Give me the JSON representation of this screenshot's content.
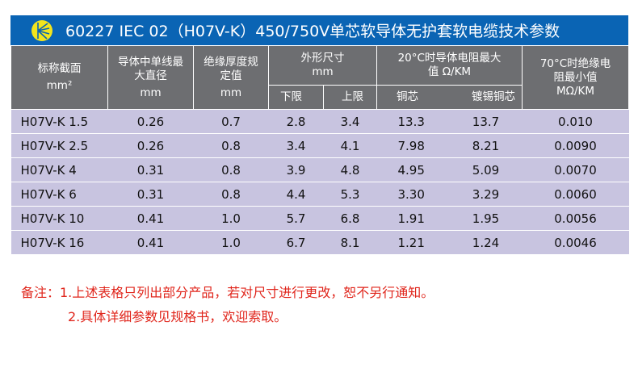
{
  "title": "60227 IEC 02（H07V-K）450/750V单芯软导体无护套软电缆技术参数",
  "colors": {
    "title_bg": "#0a64b4",
    "header_bg": "#6d6e71",
    "row_bg": "#c8c4e0",
    "note": "#e0251b",
    "logo": "#f2e51d"
  },
  "header": {
    "col1": "标称截面",
    "col1_unit": "mm²",
    "col2": "导体中单线最大直径",
    "col2_unit": "mm",
    "col3": "绝缘厚度规定值",
    "col3_unit": "mm",
    "col4": "外形尺寸",
    "col4_unit": "mm",
    "col4a": "下限",
    "col4b": "上限",
    "col5": "20°C时导体电阻最大值 Ω/KM",
    "col5a": "铜芯",
    "col5b": "镀锡铜芯",
    "col6": "70°C时绝缘电阻最小值",
    "col6_unit": "MΩ/KM"
  },
  "rows": [
    [
      "H07V-K 1.5",
      "0.26",
      "0.7",
      "2.8",
      "3.4",
      "13.3",
      "13.7",
      "0.010"
    ],
    [
      "H07V-K 2.5",
      "0.26",
      "0.8",
      "3.4",
      "4.1",
      "7.98",
      "8.21",
      "0.0090"
    ],
    [
      "H07V-K 4",
      "0.31",
      "0.8",
      "3.9",
      "4.8",
      "4.95",
      "5.09",
      "0.0070"
    ],
    [
      "H07V-K 6",
      "0.31",
      "0.8",
      "4.4",
      "5.3",
      "3.30",
      "3.29",
      "0.0060"
    ],
    [
      "H07V-K 10",
      "0.41",
      "1.0",
      "5.7",
      "6.8",
      "1.91",
      "1.95",
      "0.0056"
    ],
    [
      "H07V-K 16",
      "0.41",
      "1.0",
      "6.7",
      "8.1",
      "1.21",
      "1.24",
      "0.0046"
    ]
  ],
  "notes": {
    "line1": "备注：1.上述表格只列出部分产品，若对尺寸进行更改，恕不另行通知。",
    "line2": "2.具体详细参数见规格书，欢迎索取。"
  }
}
